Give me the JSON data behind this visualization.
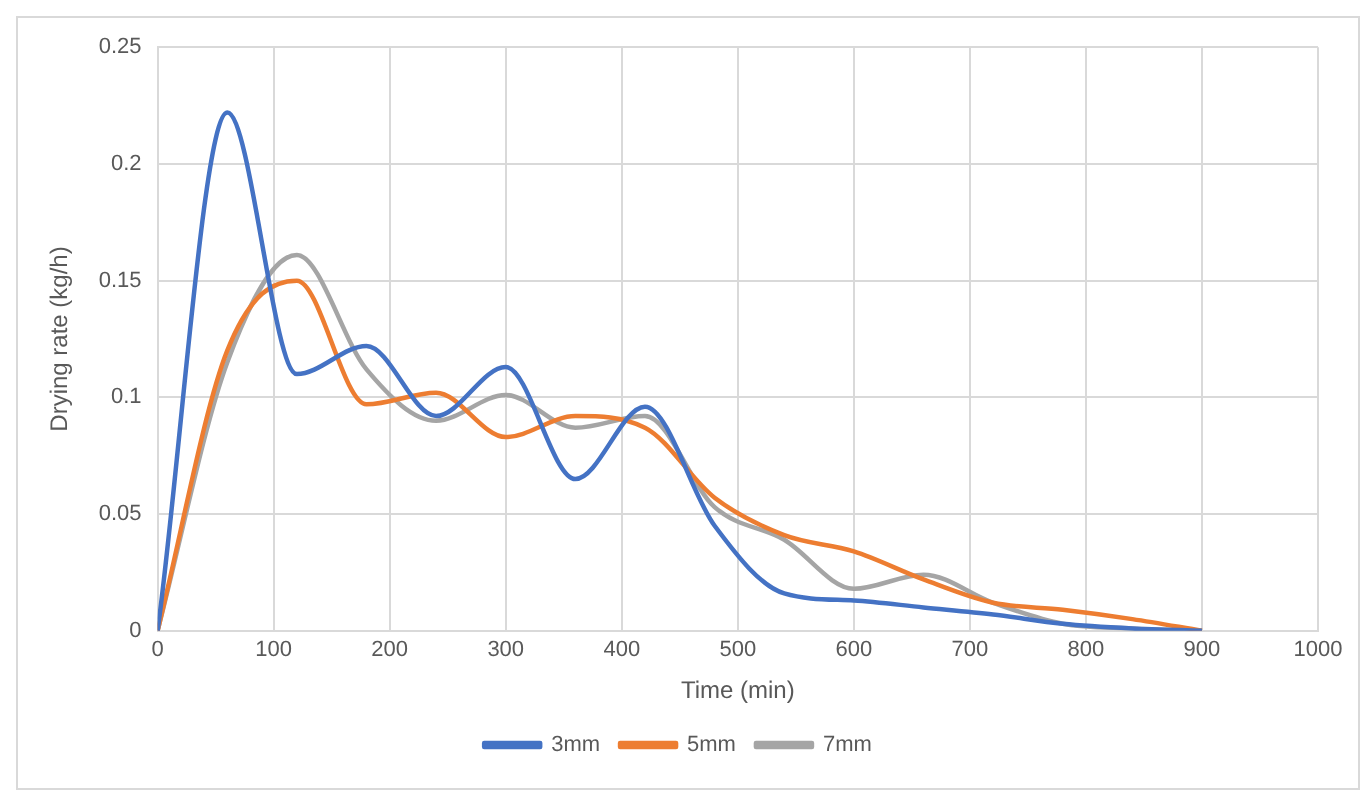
{
  "chart_data": {
    "type": "line",
    "xlabel": "Time (min)",
    "ylabel": "Drying rate (kg/h)",
    "x": [
      0,
      60,
      120,
      180,
      240,
      300,
      360,
      420,
      480,
      540,
      600,
      660,
      720,
      780,
      840,
      900
    ],
    "series": [
      {
        "name": "3mm",
        "color": "#4472c4",
        "values": [
          0,
          0.222,
          0.11,
          0.122,
          0.092,
          0.113,
          0.065,
          0.096,
          0.045,
          0.016,
          0.013,
          0.01,
          0.007,
          0.003,
          0.001,
          0
        ]
      },
      {
        "name": "5mm",
        "color": "#ed7d31",
        "values": [
          0,
          0.12,
          0.15,
          0.097,
          0.102,
          0.083,
          0.092,
          0.087,
          0.057,
          0.041,
          0.034,
          0.022,
          0.012,
          0.009,
          0.005,
          0
        ]
      },
      {
        "name": "7mm",
        "color": "#a5a5a5",
        "values": [
          0,
          0.115,
          0.161,
          0.112,
          0.09,
          0.101,
          0.087,
          0.092,
          0.053,
          0.039,
          0.018,
          0.024,
          0.012,
          0.003,
          0.001,
          0
        ]
      }
    ],
    "xlim": [
      0,
      1000
    ],
    "xticks": [
      0,
      100,
      200,
      300,
      400,
      500,
      600,
      700,
      800,
      900,
      1000
    ],
    "ylim": [
      0,
      0.25
    ],
    "yticks": [
      0,
      0.05,
      0.1,
      0.15,
      0.2,
      0.25
    ],
    "grid": true,
    "legend": "bottom",
    "marker": "none",
    "line_style": "solid"
  }
}
